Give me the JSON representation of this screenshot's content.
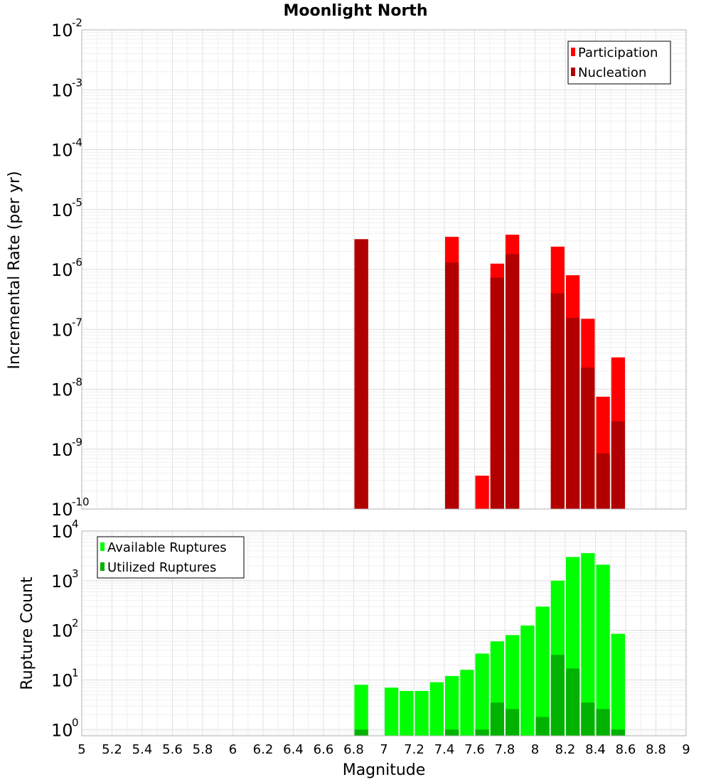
{
  "colors": {
    "participation": "#ff0000",
    "nucleation": "#b20000",
    "available": "#00ff00",
    "utilized": "#00b200",
    "grid": "#e6e6e6",
    "frame": "#b0b0b0"
  },
  "chart_data": {
    "title": "Moonlight North",
    "type": "bar",
    "bin_width": 0.1,
    "xlabel": "Magnitude",
    "xlim": [
      5,
      9
    ],
    "xticks": [
      "5",
      "5.2",
      "5.4",
      "5.6",
      "5.8",
      "6",
      "6.2",
      "6.4",
      "6.6",
      "6.8",
      "7",
      "7.2",
      "7.4",
      "7.6",
      "7.8",
      "8",
      "8.2",
      "8.4",
      "8.6",
      "8.8",
      "9"
    ],
    "panels": [
      {
        "ylabel": "Incremental Rate (per yr)",
        "scale": "log",
        "ylim": [
          1e-10,
          0.01
        ],
        "yticks": [
          {
            "base": "10",
            "exp": "-10"
          },
          {
            "base": "10",
            "exp": "-9"
          },
          {
            "base": "10",
            "exp": "-8"
          },
          {
            "base": "10",
            "exp": "-7"
          },
          {
            "base": "10",
            "exp": "-6"
          },
          {
            "base": "10",
            "exp": "-5"
          },
          {
            "base": "10",
            "exp": "-4"
          },
          {
            "base": "10",
            "exp": "-3"
          },
          {
            "base": "10",
            "exp": "-2"
          }
        ],
        "legend": {
          "position": "top-right",
          "entries": [
            "Participation",
            "Nucleation"
          ]
        },
        "series": [
          {
            "name": "Participation",
            "x": [
              6.85,
              7.45,
              7.65,
              7.75,
              7.85,
              8.15,
              8.25,
              8.35,
              8.45,
              8.55
            ],
            "values": [
              3.2e-06,
              3.5e-06,
              3.6e-10,
              1.25e-06,
              3.8e-06,
              2.4e-06,
              8e-07,
              1.5e-07,
              7.5e-09,
              3.4e-08
            ]
          },
          {
            "name": "Nucleation",
            "x": [
              6.85,
              7.45,
              7.75,
              7.85,
              8.15,
              8.25,
              8.35,
              8.45,
              8.55
            ],
            "values": [
              3.2e-06,
              1.3e-06,
              7.3e-07,
              1.8e-06,
              4e-07,
              1.55e-07,
              2.3e-08,
              8.5e-10,
              2.9e-09
            ]
          }
        ]
      },
      {
        "ylabel": "Rupture Count",
        "scale": "log",
        "ylim": [
          0.75,
          10000
        ],
        "yticks": [
          {
            "base": "10",
            "exp": "0"
          },
          {
            "base": "10",
            "exp": "1"
          },
          {
            "base": "10",
            "exp": "2"
          },
          {
            "base": "10",
            "exp": "3"
          },
          {
            "base": "10",
            "exp": "4"
          }
        ],
        "legend": {
          "position": "top-left",
          "entries": [
            "Available Ruptures",
            "Utilized Ruptures"
          ]
        },
        "series": [
          {
            "name": "Available Ruptures",
            "x": [
              6.85,
              7.05,
              7.15,
              7.25,
              7.35,
              7.45,
              7.55,
              7.65,
              7.75,
              7.85,
              7.95,
              8.05,
              8.15,
              8.25,
              8.35,
              8.45,
              8.55
            ],
            "values": [
              8,
              7,
              6,
              6,
              9,
              12,
              16,
              34,
              60,
              80,
              125,
              300,
              1000,
              3000,
              3600,
              2100,
              85
            ]
          },
          {
            "name": "Utilized Ruptures",
            "x": [
              6.85,
              7.45,
              7.65,
              7.75,
              7.85,
              8.05,
              8.15,
              8.25,
              8.35,
              8.45,
              8.55
            ],
            "values": [
              1,
              1,
              1,
              3.5,
              2.6,
              1.8,
              32,
              17,
              3.5,
              2.6,
              1
            ]
          }
        ]
      }
    ]
  }
}
